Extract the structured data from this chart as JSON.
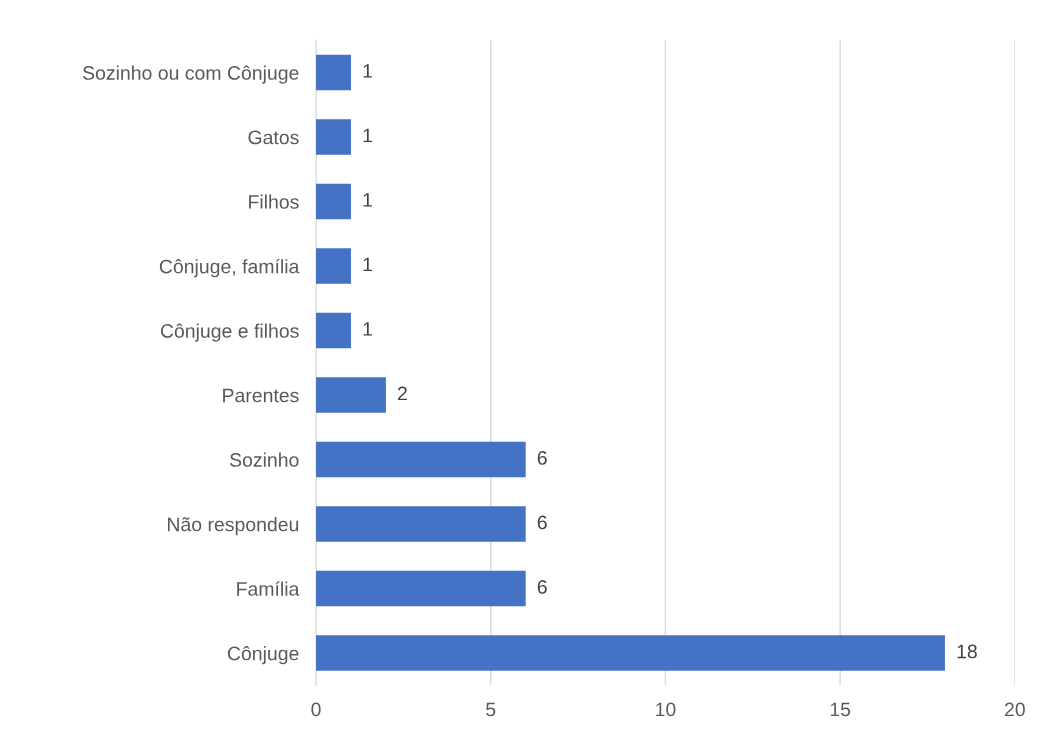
{
  "chart_data": {
    "type": "bar",
    "orientation": "horizontal",
    "categories": [
      "Sozinho ou com Cônjuge",
      "Gatos",
      "Filhos",
      "Cônjuge, família",
      "Cônjuge e filhos",
      "Parentes",
      "Sozinho",
      "Não respondeu",
      "Família",
      "Cônjuge"
    ],
    "values": [
      1,
      1,
      1,
      1,
      1,
      2,
      6,
      6,
      6,
      18
    ],
    "color": "#4472c4",
    "xlim": [
      0,
      20
    ],
    "xticks": [
      0,
      5,
      10,
      15,
      20
    ],
    "grid": "x",
    "data_labels": true
  }
}
